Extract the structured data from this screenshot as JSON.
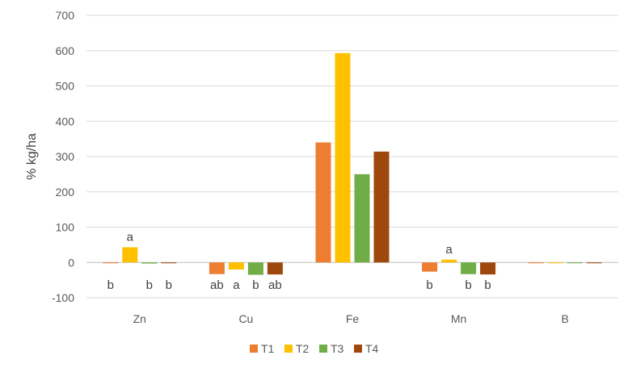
{
  "chart_data": {
    "type": "bar",
    "title": "",
    "xlabel": "",
    "ylabel": "% kg/ha",
    "ylim": [
      -100,
      700
    ],
    "yticks": [
      -100,
      0,
      100,
      200,
      300,
      400,
      500,
      600,
      700
    ],
    "grid": true,
    "legend_position": "bottom",
    "categories": [
      "Zn",
      "Cu",
      "Fe",
      "Mn",
      "B"
    ],
    "series": [
      {
        "name": "T1",
        "color": "#ED7D31",
        "values": [
          -2,
          -33,
          340,
          -26,
          -1
        ]
      },
      {
        "name": "T2",
        "color": "#FFC000",
        "values": [
          43,
          -20,
          593,
          8,
          -1
        ]
      },
      {
        "name": "T3",
        "color": "#70AD47",
        "values": [
          -3,
          -35,
          250,
          -33,
          -1
        ]
      },
      {
        "name": "T4",
        "color": "#9E480E",
        "values": [
          -2,
          -34,
          314,
          -34,
          -1
        ]
      }
    ],
    "annotations": [
      [
        "b",
        "a",
        "b",
        "b"
      ],
      [
        "ab",
        "a",
        "b",
        "ab"
      ],
      [
        "",
        "",
        "",
        ""
      ],
      [
        "b",
        "a",
        "b",
        "b"
      ],
      [
        "",
        "",
        "",
        ""
      ]
    ]
  }
}
